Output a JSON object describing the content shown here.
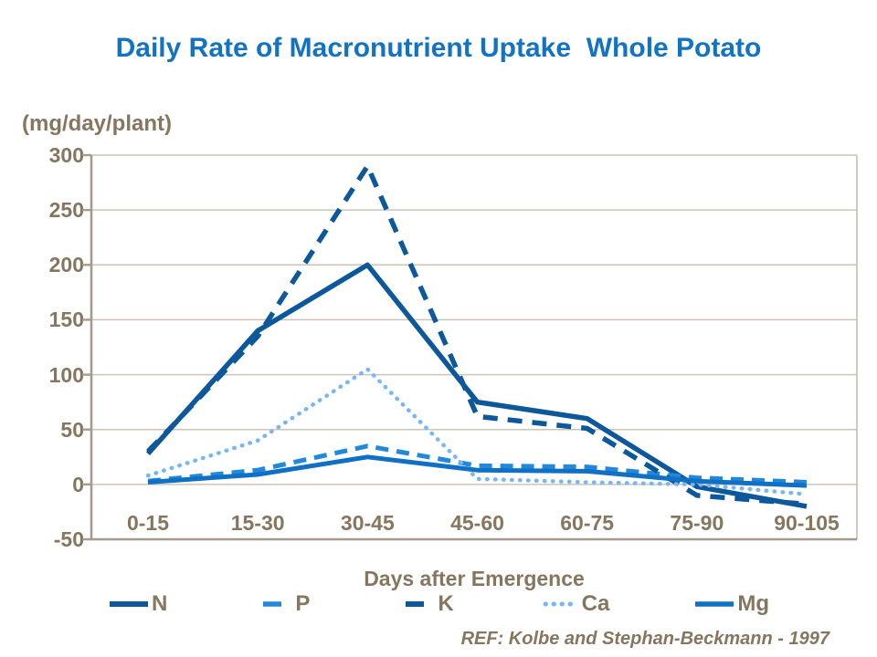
{
  "header": {
    "title": "Daily Rate of Macronutrient Uptake  Whole Potato"
  },
  "axis": {
    "unit_label": "(mg/day/plant)",
    "x_label": "Days after Emergence"
  },
  "footer": {
    "reference": "REF: Kolbe and Stephan-Beckmann - 1997"
  },
  "colors": {
    "title_blue": "#1273C4",
    "label_brown": "#86765F",
    "gridline": "#CDC4B6",
    "axis_frame": "#A59B8C",
    "navy": "#0D589B",
    "p_blue": "#2288DC",
    "mg_blue": "#0F70C5",
    "ca_light_blue": "#79B7F2"
  },
  "chart_data": {
    "type": "line",
    "title": "Daily Rate of Macronutrient Uptake  Whole Potato",
    "ylabel": "(mg/day/plant)",
    "xlabel": "Days after Emergence",
    "ylim": [
      -50,
      300
    ],
    "yticks": [
      300,
      250,
      200,
      150,
      100,
      50,
      0,
      -50
    ],
    "grid": true,
    "legend_position": "bottom",
    "categories": [
      "0-15",
      "15-30",
      "30-45",
      "45-60",
      "60-75",
      "75-90",
      "90-105"
    ],
    "series": [
      {
        "name": "N",
        "values": [
          28,
          140,
          200,
          75,
          60,
          -2,
          -20
        ],
        "color": "#0D589B",
        "style": "solid",
        "width": 5.5
      },
      {
        "name": "P",
        "values": [
          3,
          13,
          35,
          17,
          16,
          6,
          2
        ],
        "color": "#2288DC",
        "style": "dashed",
        "width": 5,
        "dash": "14 9"
      },
      {
        "name": "K",
        "values": [
          30,
          135,
          290,
          62,
          51,
          -10,
          -18
        ],
        "color": "#0D589B",
        "style": "dashed",
        "width": 5.5,
        "dash": "16 11"
      },
      {
        "name": "Ca",
        "values": [
          8,
          40,
          105,
          5,
          2,
          0,
          -9
        ],
        "color": "#79B7F2",
        "style": "dotted",
        "width": 4.5,
        "dash": "0.5 8.5"
      },
      {
        "name": "Mg",
        "values": [
          2,
          9,
          25,
          13,
          12,
          3,
          -1
        ],
        "color": "#0F70C5",
        "style": "solid",
        "width": 5
      }
    ],
    "reference": "REF: Kolbe and Stephan-Beckmann - 1997"
  }
}
